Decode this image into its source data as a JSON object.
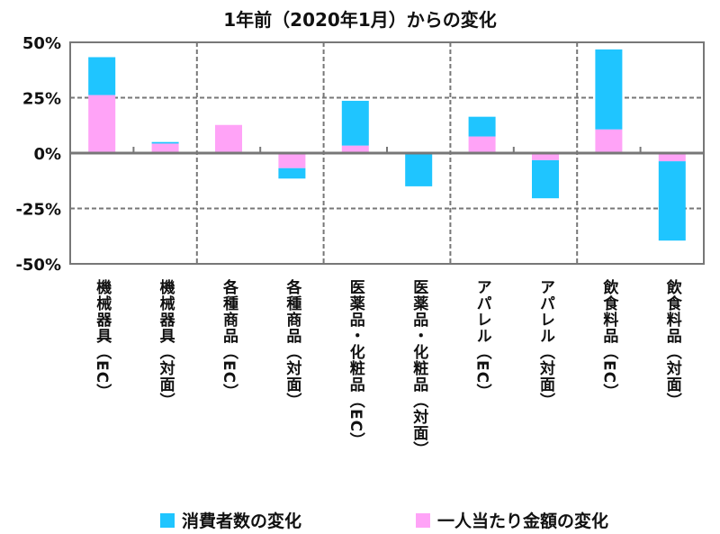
{
  "chart_data": {
    "type": "bar",
    "stacked": true,
    "title": "1年前（2020年1月）からの変化",
    "categories": [
      "機械器具（EC）",
      "機械器具（対面）",
      "各種商品（EC）",
      "各種商品（対面）",
      "医薬品・化粧品（EC）",
      "医薬品・化粧品（対面）",
      "アパレル（EC）",
      "アパレル（対面）",
      "飲食料品（EC）",
      "飲食料品（対面）"
    ],
    "series": [
      {
        "name": "一人当たり金額の変化",
        "color": "#ffa3f7",
        "values": [
          26.2,
          4.3,
          12.7,
          -6.8,
          3.4,
          0,
          7.5,
          -3.2,
          10.7,
          -3.7
        ]
      },
      {
        "name": "消費者数の変化",
        "color": "#1fc5ff",
        "values": [
          17.1,
          0.7,
          0,
          -4.7,
          20.2,
          -15.0,
          8.9,
          -17.2,
          36.1,
          -35.8
        ]
      }
    ],
    "legend_order": [
      1,
      0
    ],
    "yticks": [
      50,
      25,
      0,
      -25,
      -50
    ],
    "ytick_labels": [
      "50%",
      "25%",
      "0%",
      "-25%",
      "-50%"
    ],
    "ylim": [
      -50,
      50
    ],
    "legend": "bottom"
  }
}
